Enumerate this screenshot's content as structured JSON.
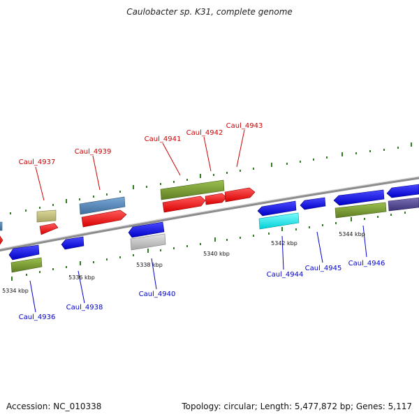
{
  "title": "Caulobacter sp. K31, complete genome",
  "footer": {
    "accession": "Accession: NC_010338",
    "summary": "Topology: circular; Length: 5,477,872 bp; Genes: 5,117"
  },
  "colors": {
    "top_strand_label": "#cc0000",
    "bottom_strand_label": "#0000cc",
    "backbone": "#8c8c8c",
    "tick": "#2e7d1e"
  },
  "scale_labels": [
    "5334 kbp",
    "5336 kbp",
    "5338 kbp",
    "5340 kbp",
    "5342 kbp",
    "5344 kbp"
  ],
  "gene_labels": [
    {
      "name": "Caul_4936",
      "strand": "bottom"
    },
    {
      "name": "Caul_4937",
      "strand": "top"
    },
    {
      "name": "Caul_4938",
      "strand": "bottom"
    },
    {
      "name": "Caul_4939",
      "strand": "top"
    },
    {
      "name": "Caul_4940",
      "strand": "bottom"
    },
    {
      "name": "Caul_4941",
      "strand": "top"
    },
    {
      "name": "Caul_4942",
      "strand": "top"
    },
    {
      "name": "Caul_4943",
      "strand": "top"
    },
    {
      "name": "Caul_4944",
      "strand": "bottom"
    },
    {
      "name": "Caul_4945",
      "strand": "bottom"
    },
    {
      "name": "Caul_4946",
      "strand": "bottom"
    }
  ]
}
